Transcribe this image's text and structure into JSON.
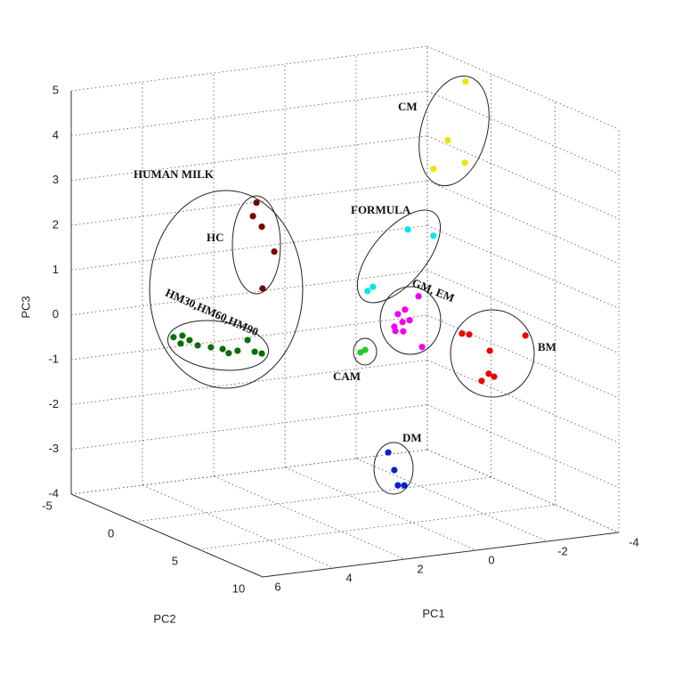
{
  "chart_data": {
    "type": "scatter3d",
    "xlabel": "PC1",
    "ylabel": "PC2",
    "zlabel": "PC3",
    "xlim": [
      -4,
      6
    ],
    "xticks": [
      -4,
      -2,
      0,
      2,
      4,
      6
    ],
    "ylim": [
      -5,
      10
    ],
    "yticks": [
      -5,
      0,
      5,
      10
    ],
    "zlim": [
      -4,
      5
    ],
    "zticks": [
      -4,
      -3,
      -2,
      -1,
      0,
      1,
      2,
      3,
      4,
      5
    ],
    "grid": true,
    "annotations": [
      "CM",
      "HUMAN MILK",
      "HC",
      "HM30,HM60,HM90",
      "FORMULA",
      "GM, EM",
      "CAM",
      "BM",
      "DM"
    ],
    "series": [
      {
        "color": "#e8e800",
        "x": [
          -3.28,
          -2.78,
          -2.38,
          -3.26
        ],
        "y": [
          0,
          0,
          0,
          0
        ],
        "z": [
          4.9,
          3.64,
          3.04,
          3.09
        ]
      },
      {
        "color": "#00e5ee",
        "x": [
          -1.66,
          -2.38,
          -0.68,
          -0.53
        ],
        "y": [
          0,
          0,
          0,
          0
        ],
        "z": [
          1.76,
          1.55,
          0.58,
          0.5
        ]
      },
      {
        "color": "#ee00ee",
        "x": [
          -1.96,
          -1.58,
          -1.38,
          -1.51,
          -1.28,
          -1.71,
          -1.31,
          -1.53,
          -2.06
        ],
        "y": [
          0,
          0,
          0,
          0,
          0,
          0,
          0,
          0,
          0
        ],
        "z": [
          0.24,
          -0.02,
          -0.1,
          -0.29,
          -0.37,
          -0.27,
          -0.47,
          -0.5,
          -0.9
        ]
      },
      {
        "color": "#ee0000",
        "x": [
          -1.39,
          -1.59,
          -3.17,
          -2.17,
          -2.14,
          -1.94,
          -2.29
        ],
        "y": [
          5,
          5,
          5,
          5,
          5,
          5,
          5
        ],
        "z": [
          0.08,
          0.04,
          -0.14,
          -0.38,
          -0.89,
          -1.03,
          -0.97
        ]
      },
      {
        "color": "#0022cc",
        "x": [
          -1.11,
          -1.28,
          -1.38,
          -1.56
        ],
        "y": [
          0,
          0,
          0,
          0
        ],
        "z": [
          -3.16,
          -3.57,
          -3.92,
          -3.94
        ]
      },
      {
        "color": "#22cc22",
        "x": [
          -0.33,
          -0.46
        ],
        "y": [
          0,
          0
        ],
        "z": [
          -0.85,
          -0.81
        ]
      },
      {
        "color": "#7a0000",
        "x": [
          2.59,
          2.69,
          2.44,
          2.09,
          2.42
        ],
        "y": [
          0,
          0,
          0,
          0,
          0
        ],
        "z": [
          2.78,
          2.49,
          2.23,
          1.64,
          0.85
        ]
      },
      {
        "color": "#0a6e0a",
        "x": [
          4.92,
          4.67,
          4.72,
          4.47,
          4.24,
          3.87,
          3.54,
          3.37,
          3.12,
          2.84,
          2.64,
          2.44
        ],
        "y": [
          0,
          0,
          0,
          0,
          0,
          0,
          0,
          0,
          0,
          0,
          0,
          0
        ],
        "z": [
          0.01,
          0.02,
          -0.15,
          -0.1,
          -0.24,
          -0.32,
          -0.39,
          -0.5,
          -0.47,
          -0.26,
          -0.54,
          -0.6
        ]
      }
    ]
  }
}
